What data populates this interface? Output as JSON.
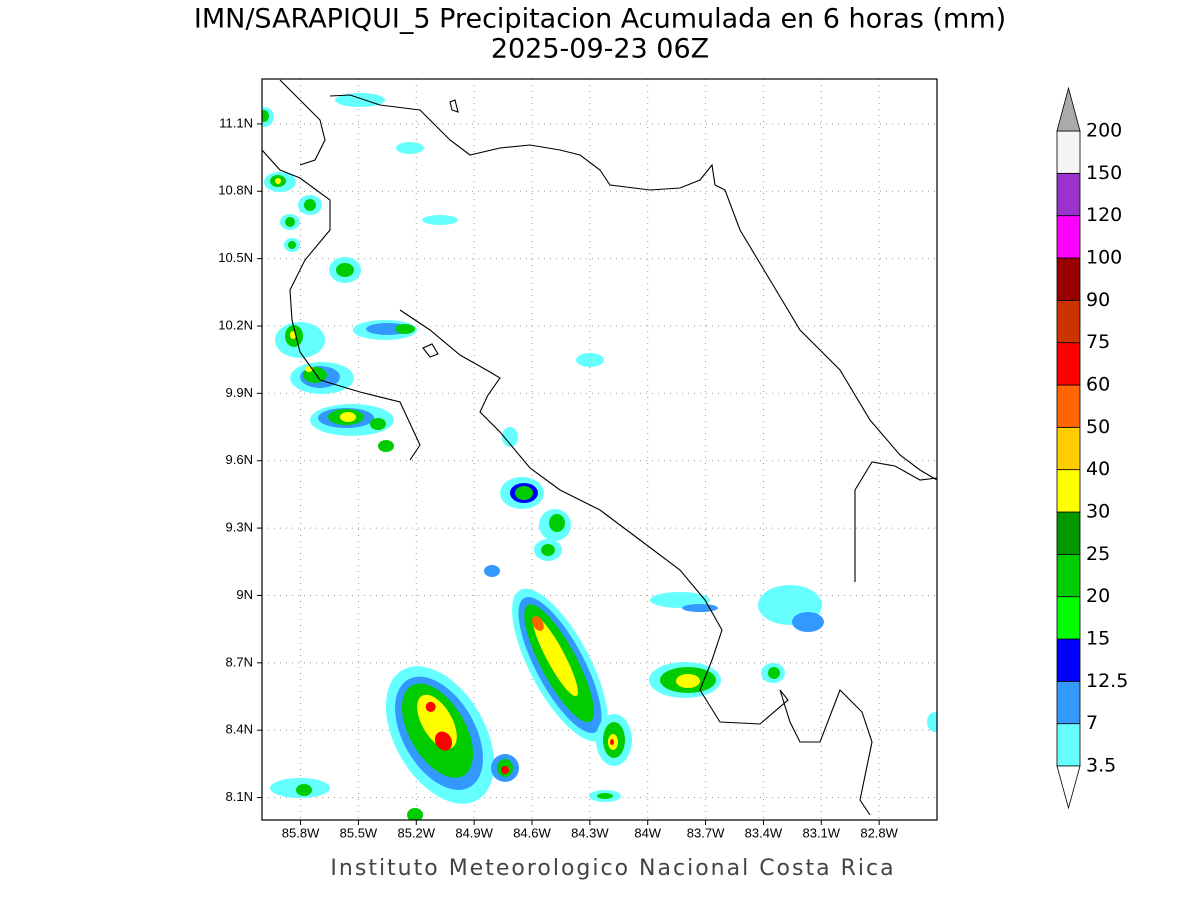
{
  "chart_data": {
    "type": "map",
    "title": "IMN/SARAPIQUI_5 Precipitacion Acumulada en 6 horas (mm)",
    "subtitle": "2025-09-23 06Z",
    "footer": "Instituto Meteorologico Nacional Costa Rica",
    "xlim": [
      -86.0,
      -82.5
    ],
    "xticks": [
      {
        "value": -85.8,
        "label": "85.8W"
      },
      {
        "value": -85.5,
        "label": "85.5W"
      },
      {
        "value": -85.2,
        "label": "85.2W"
      },
      {
        "value": -84.9,
        "label": "84.9W"
      },
      {
        "value": -84.6,
        "label": "84.6W"
      },
      {
        "value": -84.3,
        "label": "84.3W"
      },
      {
        "value": -84.0,
        "label": "84W"
      },
      {
        "value": -83.7,
        "label": "83.7W"
      },
      {
        "value": -83.4,
        "label": "83.4W"
      },
      {
        "value": -83.1,
        "label": "83.1W"
      },
      {
        "value": -82.8,
        "label": "82.8W"
      }
    ],
    "ylim": [
      8.0,
      11.3
    ],
    "yticks": [
      {
        "value": 8.1,
        "label": "8.1N"
      },
      {
        "value": 8.4,
        "label": "8.4N"
      },
      {
        "value": 8.7,
        "label": "8.7N"
      },
      {
        "value": 9.0,
        "label": "9N"
      },
      {
        "value": 9.3,
        "label": "9.3N"
      },
      {
        "value": 9.6,
        "label": "9.6N"
      },
      {
        "value": 9.9,
        "label": "9.9N"
      },
      {
        "value": 10.2,
        "label": "10.2N"
      },
      {
        "value": 10.5,
        "label": "10.5N"
      },
      {
        "value": 10.8,
        "label": "10.8N"
      },
      {
        "value": 11.1,
        "label": "11.1N"
      }
    ],
    "grid": true,
    "colorbar": {
      "levels": [
        3.5,
        7,
        12.5,
        15,
        20,
        25,
        30,
        40,
        50,
        60,
        75,
        90,
        100,
        120,
        150,
        200
      ],
      "colors": [
        "#66ffff",
        "#3399ff",
        "#0000ff",
        "#00ff00",
        "#00cc00",
        "#009900",
        "#ffff00",
        "#ffcc00",
        "#ff6600",
        "#ff0000",
        "#cc3300",
        "#990000",
        "#ff00ff",
        "#9933cc",
        "#f5f5f5"
      ],
      "over_color": "#aaaaaa",
      "under_color": "#ffffff"
    }
  }
}
